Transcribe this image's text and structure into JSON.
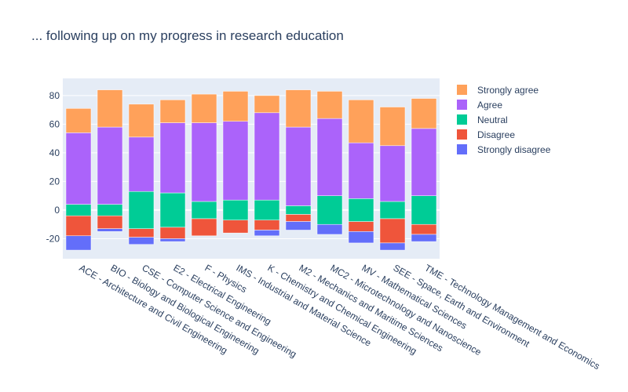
{
  "chart_data": {
    "type": "bar",
    "barmode": "diverging-stacked",
    "title": "... following up on my progress in research education",
    "xlabel": "",
    "ylabel": "",
    "ylim": [
      -34,
      92
    ],
    "yticks": [
      -20,
      0,
      20,
      40,
      60,
      80
    ],
    "categories": [
      "ACE - Architecture and Civil Engineering",
      "BIO - Biology and Biological Engineering",
      "CSE - Computer Science and Engineering",
      "E2 - Electrical Engineering",
      "F - Physics",
      "IMS - Industrial and Material Science",
      "K - Chemistry and Chemical Engineering",
      "M2 - Mechanics and Maritime Sciences",
      "MC2 - Microtechnology and Nanoscience",
      "MV - Mathematical Sciences",
      "SEE - Space, Earth and Environment",
      "TME - Technology Management and Economics"
    ],
    "series": [
      {
        "name": "Strongly disagree",
        "color": "#636efa",
        "values": [
          -10,
          -2,
          -5,
          -2,
          0,
          0,
          -4,
          -6,
          -7,
          -8,
          -5,
          -5
        ]
      },
      {
        "name": "Disagree",
        "color": "#ef553b",
        "values": [
          -14,
          -9,
          -6,
          -8,
          -12,
          -9,
          -7,
          -5,
          0,
          -7,
          -17,
          -7
        ]
      },
      {
        "name": "Neutral",
        "color": "#00cc96",
        "values": [
          [
            -4,
            4
          ],
          [
            -4,
            4
          ],
          [
            -13,
            13
          ],
          [
            -12,
            12
          ],
          [
            -6,
            6
          ],
          [
            -7,
            7
          ],
          [
            -7,
            7
          ],
          [
            -3,
            3
          ],
          [
            -10,
            10
          ],
          [
            -8,
            8
          ],
          [
            -6,
            6
          ],
          [
            -10,
            10
          ]
        ]
      },
      {
        "name": "Agree",
        "color": "#ab63fa",
        "values": [
          50,
          54,
          38,
          49,
          55,
          55,
          61,
          55,
          54,
          39,
          39,
          47
        ]
      },
      {
        "name": "Strongly agree",
        "color": "#ffa15a",
        "values": [
          17,
          26,
          23,
          16,
          20,
          21,
          12,
          26,
          19,
          30,
          27,
          21
        ]
      }
    ],
    "legend": {
      "position": "right",
      "order": [
        "Strongly agree",
        "Agree",
        "Neutral",
        "Disagree",
        "Strongly disagree"
      ]
    },
    "grid": true,
    "plot_background": "#e5ecf6"
  }
}
